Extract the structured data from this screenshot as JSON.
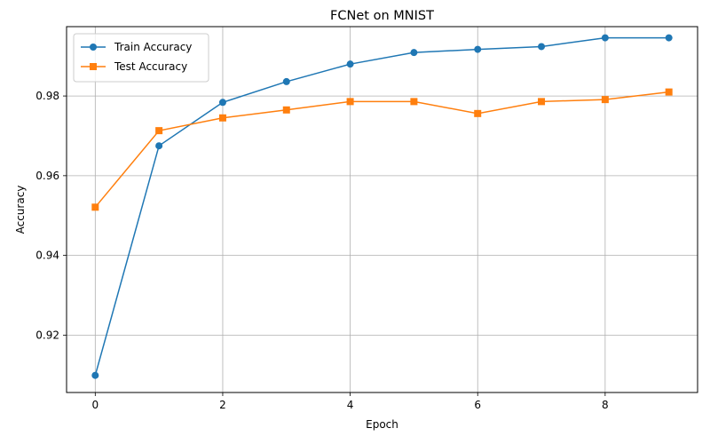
{
  "chart_data": {
    "type": "line",
    "title": "FCNet on MNIST",
    "xlabel": "Epoch",
    "ylabel": "Accuracy",
    "xlim": [
      -0.45,
      9.45
    ],
    "ylim": [
      0.9056,
      0.9974
    ],
    "xticks": [
      0,
      2,
      4,
      6,
      8
    ],
    "yticks": [
      0.92,
      0.94,
      0.96,
      0.98
    ],
    "x": [
      0,
      1,
      2,
      3,
      4,
      5,
      6,
      7,
      8,
      9
    ],
    "grid": true,
    "legend_position": "top-left",
    "series": [
      {
        "name": "Train Accuracy",
        "color": "#1f77b4",
        "marker": "circle",
        "values": [
          0.9099,
          0.9675,
          0.9784,
          0.9836,
          0.988,
          0.9909,
          0.9917,
          0.9924,
          0.9946,
          0.9946
        ]
      },
      {
        "name": "Test Accuracy",
        "color": "#ff7f0e",
        "marker": "square",
        "values": [
          0.9521,
          0.9713,
          0.9745,
          0.9765,
          0.9786,
          0.9786,
          0.9756,
          0.9786,
          0.9791,
          0.981
        ]
      }
    ]
  }
}
